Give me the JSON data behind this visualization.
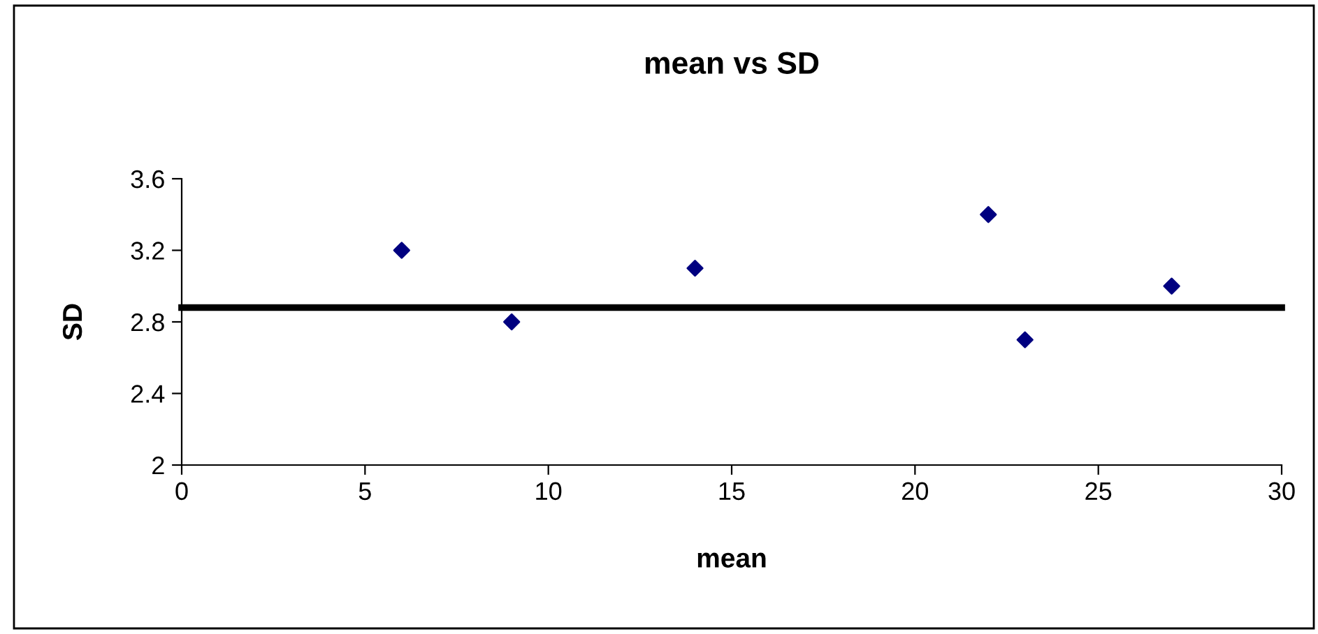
{
  "chart_data": {
    "type": "scatter",
    "title": "mean vs SD",
    "xlabel": "mean",
    "ylabel": "SD",
    "x": [
      6,
      9,
      14,
      22,
      23,
      27
    ],
    "series": [
      {
        "color": "#000080",
        "values": [
          3.2,
          2.8,
          3.1,
          3.4,
          2.7,
          3.0
        ]
      }
    ],
    "xlim": [
      0,
      30
    ],
    "xticks": [
      0,
      5,
      10,
      15,
      20,
      25,
      30
    ],
    "ylim": [
      2,
      3.6
    ],
    "yticks": [
      2,
      2.4,
      2.8,
      3.2,
      3.6
    ],
    "ref_lines": [
      {
        "axis": "y",
        "value": 2.88,
        "color": "#000000",
        "line_style": "solid"
      }
    ],
    "marker": "diamond",
    "grid": false,
    "legend": false
  }
}
